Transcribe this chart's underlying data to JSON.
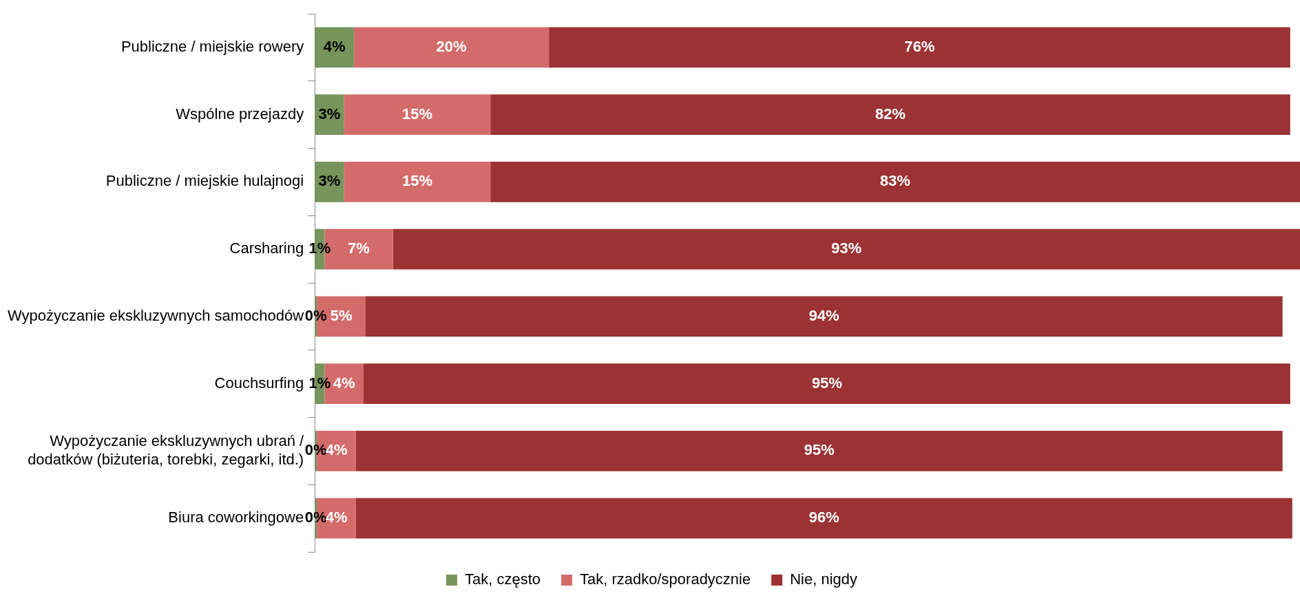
{
  "chart_data": {
    "type": "bar",
    "orientation": "horizontal",
    "stacked": true,
    "categories": [
      "Publiczne / miejskie rowery",
      "Wspólne przejazdy",
      "Publiczne / miejskie hulajnogi",
      "Carsharing",
      "Wypożyczanie ekskluzywnych samochodów",
      "Couchsurfing",
      "Wypożyczanie ekskluzywnych ubrań / dodatków (biżuteria, torebki, zegarki, itd.)",
      "Biura coworkingowe"
    ],
    "series": [
      {
        "name": "Tak, często",
        "color": "#77945c",
        "values": [
          4,
          3,
          3,
          1,
          0,
          1,
          0,
          0
        ],
        "value_labels": [
          "4%",
          "3%",
          "3%",
          "1%",
          "0%",
          "1%",
          "0%",
          "0%"
        ]
      },
      {
        "name": "Tak, rzadko/sporadycznie",
        "color": "#d46b6b",
        "values": [
          20,
          15,
          15,
          7,
          5,
          4,
          4,
          4
        ],
        "value_labels": [
          "20%",
          "15%",
          "15%",
          "7%",
          "5%",
          "4%",
          "4%",
          "4%"
        ]
      },
      {
        "name": "Nie, nigdy",
        "color": "#9c3233",
        "values": [
          76,
          82,
          83,
          93,
          94,
          95,
          95,
          96
        ],
        "value_labels": [
          "76%",
          "82%",
          "83%",
          "93%",
          "94%",
          "95%",
          "95%",
          "96%"
        ]
      }
    ],
    "tick_labels": "y",
    "legend": "bottom"
  }
}
